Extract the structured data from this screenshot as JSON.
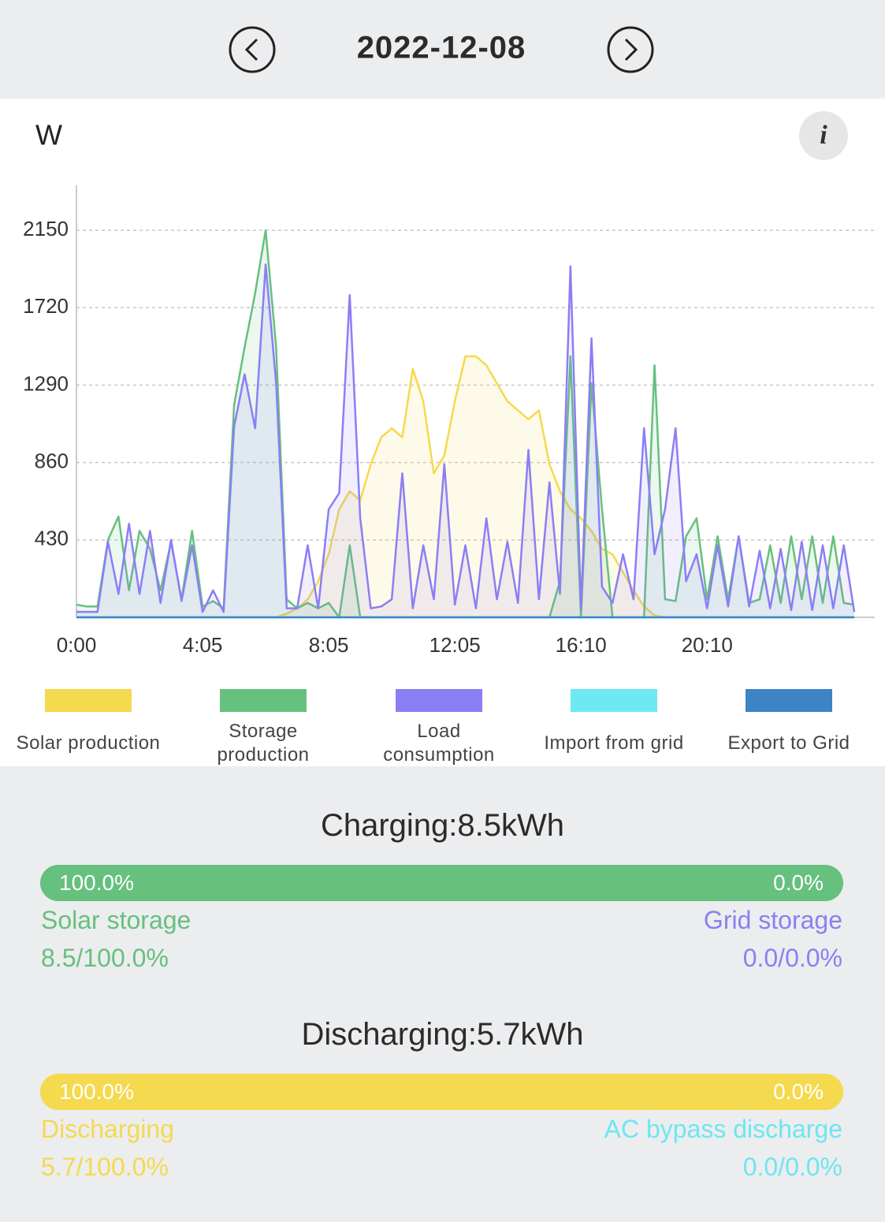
{
  "header": {
    "date": "2022-12-08"
  },
  "chart_data": {
    "type": "line",
    "unit_label": "W",
    "info_icon": "i",
    "categories": [
      "0:00",
      null,
      null,
      null,
      null,
      null,
      null,
      null,
      null,
      null,
      null,
      null,
      "4:05",
      null,
      null,
      null,
      null,
      null,
      null,
      null,
      null,
      null,
      null,
      null,
      "8:05",
      null,
      null,
      null,
      null,
      null,
      null,
      null,
      null,
      null,
      null,
      null,
      "12:05",
      null,
      null,
      null,
      null,
      null,
      null,
      null,
      null,
      null,
      null,
      null,
      "16:10",
      null,
      null,
      null,
      null,
      null,
      null,
      null,
      null,
      null,
      null,
      null,
      "20:10",
      null,
      null,
      null,
      null,
      null,
      null,
      null,
      null,
      null,
      null,
      null,
      null,
      null,
      null
    ],
    "ylim": [
      0,
      2400
    ],
    "yticks": [
      430,
      860,
      1290,
      1720,
      2150
    ],
    "grid": true,
    "series": [
      {
        "name": "Solar production",
        "color": "#f5d94e",
        "values": [
          0,
          0,
          0,
          0,
          0,
          0,
          0,
          0,
          0,
          0,
          0,
          0,
          0,
          0,
          0,
          0,
          0,
          0,
          0,
          0,
          20,
          50,
          100,
          200,
          350,
          600,
          700,
          650,
          850,
          1000,
          1050,
          1000,
          1380,
          1200,
          800,
          900,
          1200,
          1450,
          1450,
          1400,
          1300,
          1200,
          1150,
          1100,
          1150,
          850,
          700,
          600,
          550,
          480,
          380,
          350,
          250,
          150,
          60,
          10,
          0,
          0,
          0,
          0,
          0,
          0,
          0,
          0,
          0,
          0,
          0,
          0,
          0,
          0,
          0,
          0,
          0,
          0,
          0
        ]
      },
      {
        "name": "Storage production",
        "color": "#66c07e",
        "values": [
          70,
          60,
          60,
          430,
          560,
          150,
          480,
          380,
          150,
          420,
          100,
          480,
          60,
          90,
          50,
          1180,
          1500,
          1800,
          2150,
          1500,
          100,
          50,
          80,
          50,
          80,
          0,
          400,
          0,
          0,
          0,
          0,
          0,
          0,
          0,
          0,
          0,
          0,
          0,
          0,
          0,
          0,
          0,
          0,
          0,
          0,
          0,
          200,
          1450,
          0,
          1300,
          600,
          0,
          0,
          0,
          0,
          1400,
          100,
          90,
          450,
          550,
          100,
          450,
          100,
          450,
          80,
          100,
          400,
          80,
          450,
          100,
          450,
          80,
          450,
          80,
          70
        ]
      },
      {
        "name": "Load consumption",
        "color": "#8b7ef5",
        "values": [
          30,
          30,
          30,
          420,
          130,
          520,
          130,
          480,
          80,
          430,
          90,
          400,
          30,
          150,
          30,
          1060,
          1350,
          1050,
          1960,
          1300,
          50,
          50,
          400,
          50,
          600,
          690,
          1790,
          550,
          50,
          60,
          100,
          800,
          50,
          400,
          100,
          850,
          70,
          400,
          50,
          550,
          100,
          420,
          80,
          930,
          100,
          750,
          130,
          1950,
          50,
          1550,
          170,
          80,
          350,
          100,
          1050,
          350,
          600,
          1050,
          200,
          350,
          50,
          400,
          60,
          450,
          60,
          370,
          50,
          380,
          40,
          420,
          40,
          400,
          50,
          400,
          30
        ]
      },
      {
        "name": "Import from grid",
        "color": "#6de9f2",
        "values": [
          0,
          0,
          0,
          0,
          0,
          0,
          0,
          0,
          0,
          0,
          0,
          0,
          0,
          0,
          0,
          0,
          0,
          0,
          0,
          0,
          0,
          0,
          0,
          0,
          0,
          0,
          0,
          0,
          0,
          0,
          0,
          0,
          0,
          0,
          0,
          0,
          0,
          0,
          0,
          0,
          0,
          0,
          0,
          0,
          0,
          0,
          0,
          0,
          0,
          0,
          0,
          0,
          0,
          0,
          0,
          0,
          0,
          0,
          0,
          0,
          0,
          0,
          0,
          0,
          0,
          0,
          0,
          0,
          0,
          0,
          0,
          0,
          0,
          0,
          0
        ]
      },
      {
        "name": "Export to Grid",
        "color": "#3d84c4",
        "values": [
          0,
          0,
          0,
          0,
          0,
          0,
          0,
          0,
          0,
          0,
          0,
          0,
          0,
          0,
          0,
          0,
          0,
          0,
          0,
          0,
          0,
          0,
          0,
          0,
          0,
          0,
          0,
          0,
          0,
          0,
          0,
          0,
          0,
          0,
          0,
          0,
          0,
          0,
          0,
          0,
          0,
          0,
          0,
          0,
          0,
          0,
          0,
          0,
          0,
          0,
          0,
          0,
          0,
          0,
          0,
          0,
          0,
          0,
          0,
          0,
          0,
          0,
          0,
          0,
          0,
          0,
          0,
          0,
          0,
          0,
          0,
          0,
          0,
          0,
          0
        ]
      }
    ]
  },
  "summary": [
    {
      "title": "Charging:8.5kWh",
      "left": {
        "value": 100,
        "label": "100.0%",
        "name": "Solar storage",
        "detail": "8.5/100.0%",
        "color": "#66c07e"
      },
      "right": {
        "value": 0,
        "label": "0.0%",
        "name": "Grid storage",
        "detail": "0.0/0.0%",
        "color": "#8b80f0"
      }
    },
    {
      "title": "Discharging:5.7kWh",
      "left": {
        "value": 100,
        "label": "100.0%",
        "name": "Discharging",
        "detail": "5.7/100.0%",
        "color": "#f5d94e"
      },
      "right": {
        "value": 0,
        "label": "0.0%",
        "name": "AC bypass discharge",
        "detail": "0.0/0.0%",
        "color": "#6de6f0"
      }
    }
  ]
}
